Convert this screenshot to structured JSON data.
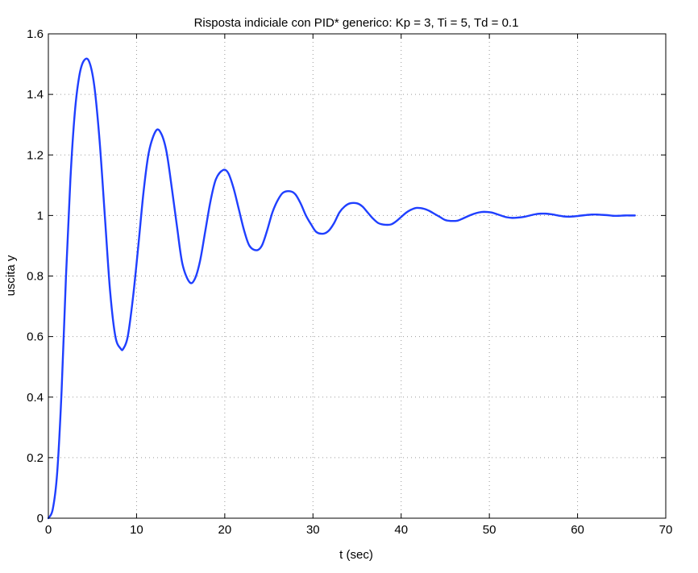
{
  "chart_data": {
    "type": "line",
    "title": "Risposta indiciale con PID* generico: Kp = 3, Ti = 5, Td = 0.1",
    "xlabel": "t (sec)",
    "ylabel": "uscita y",
    "xlim": [
      0,
      70
    ],
    "ylim": [
      0,
      1.6
    ],
    "xticks": [
      0,
      10,
      20,
      30,
      40,
      50,
      60,
      70
    ],
    "xtick_labels": [
      "0",
      "10",
      "20",
      "30",
      "40",
      "50",
      "60",
      "70"
    ],
    "yticks": [
      0,
      0.2,
      0.4,
      0.6,
      0.8,
      1.0,
      1.2,
      1.4,
      1.6
    ],
    "ytick_labels": [
      "0",
      "0.2",
      "0.4",
      "0.6",
      "0.8",
      "1",
      "1.2",
      "1.4",
      "1.6"
    ],
    "grid": true,
    "line_color": "#1f3fff",
    "series": [
      {
        "x": [
          0,
          0.5,
          1.0,
          1.5,
          2.0,
          2.5,
          3.0,
          3.5,
          4.0,
          4.6,
          5.2,
          5.8,
          6.4,
          7.0,
          7.6,
          8.2,
          8.5,
          9.0,
          9.6,
          10.2,
          10.8,
          11.4,
          12.2,
          12.8,
          13.4,
          14.0,
          14.6,
          15.2,
          16.0,
          16.6,
          17.2,
          17.8,
          18.4,
          19.0,
          19.8,
          20.4,
          21.0,
          21.6,
          22.2,
          22.8,
          23.6,
          24.2,
          24.8,
          25.4,
          26.0,
          26.6,
          27.4,
          28.0,
          28.6,
          29.2,
          29.8,
          30.4,
          31.2,
          31.8,
          32.4,
          33.0,
          33.6,
          34.2,
          35.0,
          35.6,
          36.2,
          36.8,
          37.4,
          38.0,
          38.8,
          39.4,
          40.0,
          40.6,
          41.2,
          41.8,
          42.6,
          43.2,
          43.8,
          44.4,
          45.0,
          45.6,
          46.4,
          47.0,
          47.6,
          48.2,
          48.8,
          49.4,
          50.2,
          50.8,
          51.4,
          52.0,
          52.6,
          53.2,
          54.0,
          54.6,
          55.2,
          55.8,
          56.4,
          57.0,
          57.8,
          58.4,
          59.0,
          59.6,
          60.2,
          60.8,
          61.6,
          62.2,
          62.8,
          63.4,
          64.0,
          64.6,
          65.4,
          66.0,
          66.5
        ],
        "y": [
          0,
          0.03,
          0.15,
          0.42,
          0.8,
          1.12,
          1.34,
          1.46,
          1.51,
          1.51,
          1.43,
          1.25,
          1.0,
          0.75,
          0.6,
          0.56,
          0.56,
          0.6,
          0.73,
          0.9,
          1.08,
          1.21,
          1.28,
          1.27,
          1.21,
          1.09,
          0.96,
          0.84,
          0.78,
          0.79,
          0.85,
          0.95,
          1.05,
          1.12,
          1.15,
          1.14,
          1.09,
          1.02,
          0.95,
          0.9,
          0.885,
          0.9,
          0.95,
          1.01,
          1.05,
          1.075,
          1.08,
          1.07,
          1.04,
          1.0,
          0.97,
          0.945,
          0.94,
          0.95,
          0.975,
          1.01,
          1.03,
          1.04,
          1.04,
          1.03,
          1.01,
          0.99,
          0.975,
          0.97,
          0.97,
          0.98,
          0.995,
          1.01,
          1.02,
          1.025,
          1.022,
          1.015,
          1.005,
          0.995,
          0.985,
          0.982,
          0.983,
          0.99,
          0.998,
          1.005,
          1.01,
          1.012,
          1.01,
          1.005,
          0.999,
          0.994,
          0.992,
          0.993,
          0.996,
          1.0,
          1.004,
          1.006,
          1.006,
          1.004,
          1.0,
          0.997,
          0.996,
          0.997,
          0.999,
          1.001,
          1.003,
          1.003,
          1.002,
          1.001,
          0.999,
          0.999,
          1.0,
          1.0,
          1.0
        ]
      }
    ]
  }
}
